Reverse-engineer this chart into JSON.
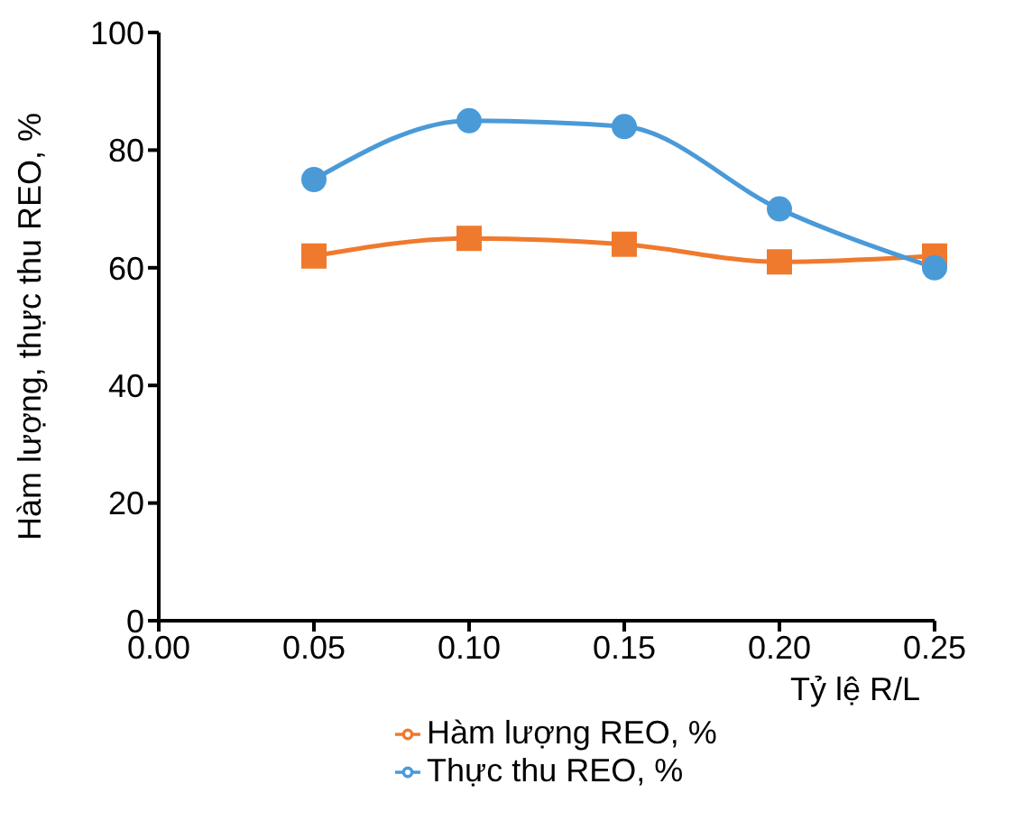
{
  "chart_data": {
    "type": "line",
    "xlabel": "Tỷ lệ R/L",
    "ylabel": "Hàm lượng, thực thu REO, %",
    "x": [
      0.05,
      0.1,
      0.15,
      0.2,
      0.25
    ],
    "series": [
      {
        "name": "Thực thu REO, %",
        "color": "#4a9ad8",
        "marker": "circle",
        "values": [
          75,
          85,
          84,
          70,
          60
        ]
      },
      {
        "name": "Hàm lượng REO, %",
        "color": "#ef7a2e",
        "marker": "square",
        "values": [
          62,
          65,
          64,
          61,
          62
        ]
      }
    ],
    "xlim": [
      0,
      0.25
    ],
    "xticks": [
      {
        "value": 0,
        "label": "0.00"
      },
      {
        "value": 0.05,
        "label": "0.05"
      },
      {
        "value": 0.1,
        "label": "0.10"
      },
      {
        "value": 0.15,
        "label": "0.15"
      },
      {
        "value": 0.2,
        "label": "0.20"
      },
      {
        "value": 0.25,
        "label": "0.25"
      }
    ],
    "ylim": [
      0,
      100
    ],
    "yticks": [
      0,
      20,
      40,
      60,
      80,
      100
    ],
    "grid": false,
    "legend": "bottom",
    "line_style": "solid"
  }
}
